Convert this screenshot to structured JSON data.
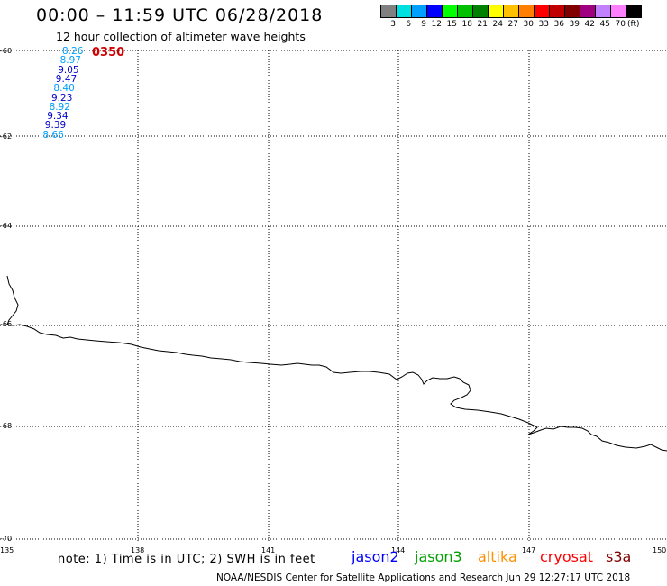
{
  "header": {
    "title": "00:00 – 11:59 UTC 06/28/2018",
    "subtitle": "12 hour collection of altimeter wave heights"
  },
  "color_scale": {
    "colors": [
      "#808080",
      "#00e0e0",
      "#00a0ff",
      "#0000ff",
      "#00ff00",
      "#00c000",
      "#008000",
      "#ffff00",
      "#ffc000",
      "#ff8000",
      "#ff0000",
      "#c00000",
      "#800000",
      "#a00080",
      "#c080ff",
      "#ff80ff",
      "#000000"
    ],
    "labels": [
      "3",
      "6",
      "9",
      "12",
      "15",
      "18",
      "21",
      "24",
      "27",
      "30",
      "33",
      "36",
      "39",
      "42",
      "45",
      "70"
    ],
    "unit": "(ft)"
  },
  "axes": {
    "y_labels": [
      "-60",
      "-62",
      "-64",
      "-66",
      "-68",
      "-70"
    ],
    "x_labels": [
      "135",
      "138",
      "141",
      "144",
      "147",
      "150"
    ]
  },
  "track": {
    "id": "0350",
    "id_color": "#d00000",
    "values": [
      {
        "v": "8.26",
        "c": "#00a0ff"
      },
      {
        "v": "8.97",
        "c": "#00a0ff"
      },
      {
        "v": "9.05",
        "c": "#0000cc"
      },
      {
        "v": "9.47",
        "c": "#0000cc"
      },
      {
        "v": "8.40",
        "c": "#00a0ff"
      },
      {
        "v": "9.23",
        "c": "#0000cc"
      },
      {
        "v": "8.92",
        "c": "#00a0ff"
      },
      {
        "v": "9.34",
        "c": "#0000cc"
      },
      {
        "v": "9.39",
        "c": "#0000cc"
      },
      {
        "v": "8.66",
        "c": "#00a0ff"
      }
    ]
  },
  "note": "note: 1) Time is in UTC; 2) SWH is in feet",
  "missions": [
    {
      "name": "jason2",
      "color": "#0000ff"
    },
    {
      "name": "jason3",
      "color": "#00a000"
    },
    {
      "name": "altika",
      "color": "#ff9000"
    },
    {
      "name": "cryosat",
      "color": "#ff0000"
    },
    {
      "name": "s3a",
      "color": "#800000"
    }
  ],
  "footer": "NOAA/NESDIS Center for Satellite Applications and Research   Jun 29 12:27:17 UTC 2018"
}
